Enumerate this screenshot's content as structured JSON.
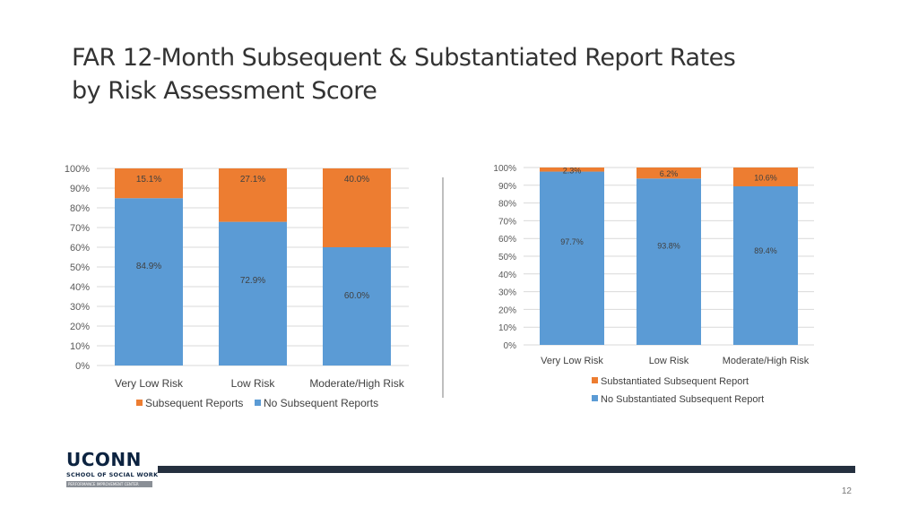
{
  "slide": {
    "title_line1": "FAR 12-Month Subsequent & Substantiated Report Rates",
    "title_line2": "by Risk Assessment Score",
    "page_number": "12"
  },
  "logo": {
    "name": "UCONN",
    "subtitle": "SCHOOL OF SOCIAL WORK",
    "tagline": "PERFORMANCE IMPROVEMENT CENTER"
  },
  "colors": {
    "orange": "#ED7D31",
    "blue": "#5B9BD5",
    "grid": "#D9D9D9",
    "footer": "#25303F"
  },
  "chart_data": [
    {
      "type": "bar",
      "stacked": true,
      "categories": [
        "Very Low Risk",
        "Low Risk",
        "Moderate/High Risk"
      ],
      "series": [
        {
          "name": "Subsequent Reports",
          "values": [
            15.1,
            27.1,
            40.0
          ],
          "labels": [
            "15.1%",
            "27.1%",
            "40.0%"
          ],
          "color": "#ED7D31"
        },
        {
          "name": "No Subsequent Reports",
          "values": [
            84.9,
            72.9,
            60.0
          ],
          "labels": [
            "84.9%",
            "72.9%",
            "60.0%"
          ],
          "color": "#5B9BD5"
        }
      ],
      "yticks": [
        "0%",
        "10%",
        "20%",
        "30%",
        "40%",
        "50%",
        "60%",
        "70%",
        "80%",
        "90%",
        "100%"
      ],
      "ylim": [
        0,
        100
      ],
      "grid": true,
      "legend": "bottom"
    },
    {
      "type": "bar",
      "stacked": true,
      "categories": [
        "Very Low Risk",
        "Low Risk",
        "Moderate/High Risk"
      ],
      "series": [
        {
          "name": "Substantiated Subsequent Report",
          "values": [
            2.3,
            6.2,
            10.6
          ],
          "labels": [
            "2.3%",
            "6.2%",
            "10.6%"
          ],
          "color": "#ED7D31"
        },
        {
          "name": "No Substantiated Subsequent Report",
          "values": [
            97.7,
            93.8,
            89.4
          ],
          "labels": [
            "97.7%",
            "93.8%",
            "89.4%"
          ],
          "color": "#5B9BD5"
        }
      ],
      "yticks": [
        "0%",
        "10%",
        "20%",
        "30%",
        "40%",
        "50%",
        "60%",
        "70%",
        "80%",
        "90%",
        "100%"
      ],
      "ylim": [
        0,
        100
      ],
      "grid": true,
      "legend": "bottom"
    }
  ]
}
